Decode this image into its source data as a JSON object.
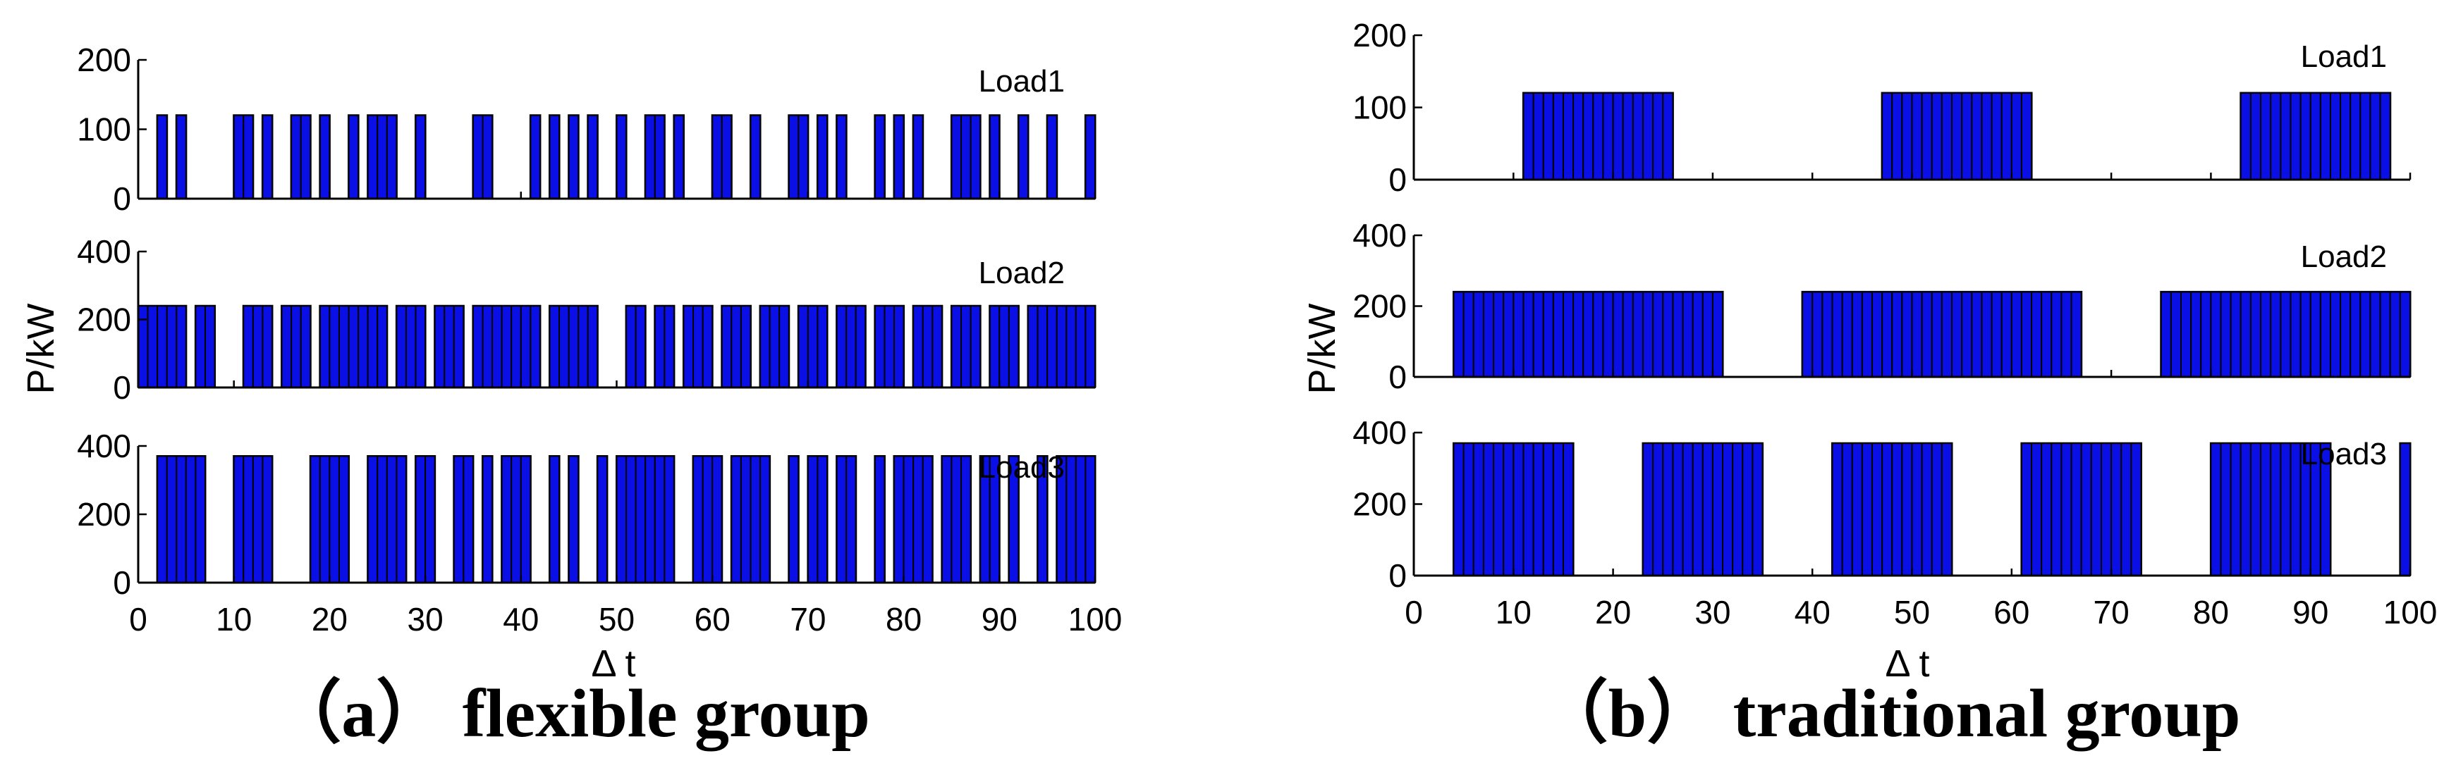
{
  "chart_data": [
    {
      "id": "a",
      "type": "bar",
      "caption": "（a） flexible group",
      "xlabel": "Δ t",
      "ylabel": "P/kW",
      "xlim": [
        0,
        100
      ],
      "xticks": [
        "0",
        "10",
        "20",
        "30",
        "40",
        "50",
        "60",
        "70",
        "80",
        "90",
        "100"
      ],
      "subplots": [
        {
          "label": "Load1",
          "ylim": [
            0,
            200
          ],
          "yticks": [
            "0",
            "100",
            "200"
          ],
          "power": 120,
          "on_intervals": [
            [
              2,
              3
            ],
            [
              4,
              5
            ],
            [
              10,
              12
            ],
            [
              13,
              14
            ],
            [
              16,
              18
            ],
            [
              19,
              20
            ],
            [
              22,
              23
            ],
            [
              24,
              26
            ],
            [
              26,
              27
            ],
            [
              29,
              30
            ],
            [
              35,
              37
            ],
            [
              41,
              42
            ],
            [
              43,
              44
            ],
            [
              45,
              46
            ],
            [
              47,
              48
            ],
            [
              50,
              51
            ],
            [
              53,
              55
            ],
            [
              56,
              57
            ],
            [
              60,
              62
            ],
            [
              64,
              65
            ],
            [
              68,
              70
            ],
            [
              71,
              72
            ],
            [
              73,
              74
            ],
            [
              77,
              78
            ],
            [
              79,
              80
            ],
            [
              81,
              82
            ],
            [
              85,
              88
            ],
            [
              89,
              90
            ],
            [
              92,
              93
            ],
            [
              95,
              96
            ],
            [
              99,
              100
            ]
          ]
        },
        {
          "label": "Load2",
          "ylim": [
            0,
            400
          ],
          "yticks": [
            "0",
            "200",
            "400"
          ],
          "power": 240,
          "on_intervals": [
            [
              0,
              5
            ],
            [
              6,
              8
            ],
            [
              11,
              14
            ],
            [
              15,
              18
            ],
            [
              19,
              26
            ],
            [
              27,
              29
            ],
            [
              29,
              30
            ],
            [
              31,
              34
            ],
            [
              35,
              42
            ],
            [
              43,
              48
            ],
            [
              51,
              53
            ],
            [
              54,
              56
            ],
            [
              57,
              60
            ],
            [
              61,
              64
            ],
            [
              65,
              68
            ],
            [
              69,
              72
            ],
            [
              73,
              76
            ],
            [
              77,
              80
            ],
            [
              81,
              84
            ],
            [
              85,
              88
            ],
            [
              89,
              92
            ],
            [
              93,
              100
            ]
          ]
        },
        {
          "label": "Load3",
          "ylim": [
            0,
            400
          ],
          "yticks": [
            "0",
            "200",
            "400"
          ],
          "power": 370,
          "on_intervals": [
            [
              2,
              7
            ],
            [
              10,
              14
            ],
            [
              18,
              19
            ],
            [
              19,
              22
            ],
            [
              24,
              28
            ],
            [
              29,
              31
            ],
            [
              33,
              35
            ],
            [
              36,
              37
            ],
            [
              38,
              41
            ],
            [
              43,
              44
            ],
            [
              45,
              46
            ],
            [
              48,
              49
            ],
            [
              50,
              56
            ],
            [
              58,
              61
            ],
            [
              62,
              66
            ],
            [
              68,
              69
            ],
            [
              70,
              72
            ],
            [
              73,
              75
            ],
            [
              77,
              78
            ],
            [
              79,
              83
            ],
            [
              84,
              87
            ],
            [
              88,
              90
            ],
            [
              91,
              92
            ],
            [
              94,
              95
            ],
            [
              96,
              98
            ],
            [
              98,
              100
            ]
          ]
        }
      ]
    },
    {
      "id": "b",
      "type": "bar",
      "caption": "（b） traditional group",
      "xlabel": "Δ t",
      "ylabel": "P/kW",
      "xlim": [
        0,
        100
      ],
      "xticks": [
        "0",
        "10",
        "20",
        "30",
        "40",
        "50",
        "60",
        "70",
        "80",
        "90",
        "100"
      ],
      "subplots": [
        {
          "label": "Load1",
          "ylim": [
            0,
            200
          ],
          "yticks": [
            "0",
            "100",
            "200"
          ],
          "power": 120,
          "on_intervals": [
            [
              11,
              26
            ],
            [
              47,
              62
            ],
            [
              83,
              98
            ]
          ]
        },
        {
          "label": "Load2",
          "ylim": [
            0,
            400
          ],
          "yticks": [
            "0",
            "200",
            "400"
          ],
          "power": 240,
          "on_intervals": [
            [
              4,
              31
            ],
            [
              39,
              67
            ],
            [
              75,
              100
            ]
          ]
        },
        {
          "label": "Load3",
          "ylim": [
            0,
            400
          ],
          "yticks": [
            "0",
            "200",
            "400"
          ],
          "power": 370,
          "on_intervals": [
            [
              4,
              16
            ],
            [
              23,
              35
            ],
            [
              42,
              54
            ],
            [
              61,
              73
            ],
            [
              80,
              92
            ],
            [
              99,
              100
            ]
          ]
        }
      ]
    }
  ]
}
